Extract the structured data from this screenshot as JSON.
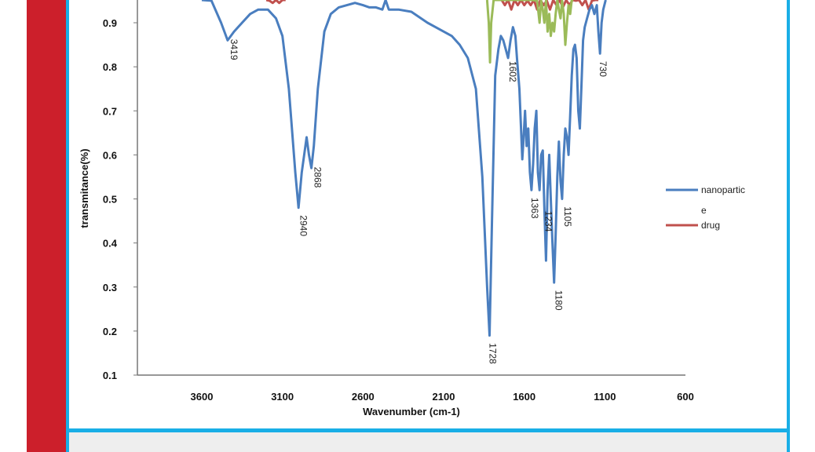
{
  "chart_data": {
    "type": "line",
    "ylabel": "transmitance(%)",
    "xlabel": "Wavenumber (cm-1)",
    "xlim": [
      4000,
      600
    ],
    "ylim": [
      0.1,
      0.96
    ],
    "x_ticks": [
      3600,
      3100,
      2600,
      2100,
      1600,
      1100,
      600
    ],
    "y_ticks": [
      0.1,
      0.2,
      0.3,
      0.4,
      0.5,
      0.6,
      0.7,
      0.8,
      0.9
    ],
    "legend_position": "right",
    "series": [
      {
        "name": "nanopartic e",
        "color": "#4a7ebf",
        "points": [
          [
            3600,
            0.98
          ],
          [
            3540,
            0.95
          ],
          [
            3480,
            0.9
          ],
          [
            3440,
            0.86
          ],
          [
            3400,
            0.88
          ],
          [
            3350,
            0.9
          ],
          [
            3300,
            0.92
          ],
          [
            3250,
            0.93
          ],
          [
            3190,
            0.93
          ],
          [
            3140,
            0.91
          ],
          [
            3100,
            0.87
          ],
          [
            3060,
            0.75
          ],
          [
            3020,
            0.56
          ],
          [
            3000,
            0.48
          ],
          [
            2980,
            0.56
          ],
          [
            2965,
            0.6
          ],
          [
            2950,
            0.64
          ],
          [
            2935,
            0.6
          ],
          [
            2920,
            0.57
          ],
          [
            2905,
            0.62
          ],
          [
            2880,
            0.75
          ],
          [
            2840,
            0.88
          ],
          [
            2800,
            0.92
          ],
          [
            2750,
            0.935
          ],
          [
            2700,
            0.94
          ],
          [
            2650,
            0.945
          ],
          [
            2600,
            0.94
          ],
          [
            2560,
            0.935
          ],
          [
            2520,
            0.935
          ],
          [
            2480,
            0.93
          ],
          [
            2460,
            0.98
          ],
          [
            2440,
            0.93
          ],
          [
            2380,
            0.93
          ],
          [
            2300,
            0.925
          ],
          [
            2200,
            0.9
          ],
          [
            2150,
            0.89
          ],
          [
            2100,
            0.88
          ],
          [
            2050,
            0.87
          ],
          [
            2000,
            0.85
          ],
          [
            1950,
            0.82
          ],
          [
            1900,
            0.75
          ],
          [
            1860,
            0.55
          ],
          [
            1830,
            0.3
          ],
          [
            1815,
            0.19
          ],
          [
            1800,
            0.45
          ],
          [
            1780,
            0.78
          ],
          [
            1760,
            0.84
          ],
          [
            1745,
            0.87
          ],
          [
            1730,
            0.86
          ],
          [
            1715,
            0.84
          ],
          [
            1700,
            0.82
          ],
          [
            1685,
            0.86
          ],
          [
            1670,
            0.89
          ],
          [
            1655,
            0.87
          ],
          [
            1645,
            0.82
          ],
          [
            1630,
            0.75
          ],
          [
            1620,
            0.66
          ],
          [
            1612,
            0.59
          ],
          [
            1605,
            0.63
          ],
          [
            1595,
            0.7
          ],
          [
            1585,
            0.62
          ],
          [
            1575,
            0.66
          ],
          [
            1565,
            0.56
          ],
          [
            1555,
            0.52
          ],
          [
            1545,
            0.58
          ],
          [
            1535,
            0.66
          ],
          [
            1525,
            0.7
          ],
          [
            1515,
            0.56
          ],
          [
            1505,
            0.52
          ],
          [
            1495,
            0.6
          ],
          [
            1485,
            0.61
          ],
          [
            1475,
            0.48
          ],
          [
            1465,
            0.36
          ],
          [
            1455,
            0.52
          ],
          [
            1445,
            0.6
          ],
          [
            1435,
            0.5
          ],
          [
            1425,
            0.4
          ],
          [
            1415,
            0.31
          ],
          [
            1405,
            0.42
          ],
          [
            1395,
            0.55
          ],
          [
            1385,
            0.63
          ],
          [
            1375,
            0.54
          ],
          [
            1365,
            0.5
          ],
          [
            1355,
            0.6
          ],
          [
            1345,
            0.66
          ],
          [
            1335,
            0.64
          ],
          [
            1325,
            0.6
          ],
          [
            1315,
            0.69
          ],
          [
            1305,
            0.78
          ],
          [
            1295,
            0.84
          ],
          [
            1285,
            0.85
          ],
          [
            1275,
            0.82
          ],
          [
            1265,
            0.7
          ],
          [
            1255,
            0.66
          ],
          [
            1245,
            0.76
          ],
          [
            1235,
            0.86
          ],
          [
            1225,
            0.89
          ],
          [
            1210,
            0.91
          ],
          [
            1195,
            0.93
          ],
          [
            1180,
            0.94
          ],
          [
            1165,
            0.92
          ],
          [
            1150,
            0.94
          ],
          [
            1140,
            0.88
          ],
          [
            1130,
            0.83
          ],
          [
            1120,
            0.9
          ],
          [
            1110,
            0.93
          ],
          [
            1095,
            0.98
          ]
        ]
      },
      {
        "name": "drug",
        "color": "#c0504d",
        "points": [
          [
            3200,
            0.96
          ],
          [
            3180,
            0.95
          ],
          [
            3160,
            0.945
          ],
          [
            3140,
            0.955
          ],
          [
            3120,
            0.945
          ],
          [
            3100,
            0.955
          ],
          [
            3080,
            0.96
          ]
        ]
      },
      {
        "name": "drug",
        "color": "#c0504d",
        "points": [
          [
            1740,
            0.98
          ],
          [
            1720,
            0.94
          ],
          [
            1700,
            0.965
          ],
          [
            1680,
            0.93
          ],
          [
            1660,
            0.96
          ],
          [
            1640,
            0.94
          ],
          [
            1620,
            0.965
          ],
          [
            1600,
            0.94
          ],
          [
            1580,
            0.95
          ],
          [
            1560,
            0.94
          ],
          [
            1540,
            0.96
          ],
          [
            1520,
            0.93
          ],
          [
            1500,
            0.965
          ],
          [
            1480,
            0.94
          ],
          [
            1460,
            0.95
          ],
          [
            1440,
            0.93
          ],
          [
            1420,
            0.955
          ],
          [
            1400,
            0.94
          ],
          [
            1380,
            0.96
          ],
          [
            1360,
            0.935
          ],
          [
            1340,
            0.96
          ],
          [
            1320,
            0.94
          ],
          [
            1300,
            0.96
          ],
          [
            1280,
            0.95
          ],
          [
            1260,
            0.97
          ],
          [
            1240,
            0.94
          ],
          [
            1220,
            0.96
          ],
          [
            1200,
            0.93
          ],
          [
            1180,
            0.95
          ],
          [
            1160,
            0.965
          ],
          [
            1140,
            0.97
          ]
        ]
      },
      {
        "name": "",
        "color": "#9bbb59",
        "points": [
          [
            1830,
            0.98
          ],
          [
            1820,
            0.9
          ],
          [
            1812,
            0.81
          ],
          [
            1805,
            0.9
          ],
          [
            1790,
            0.96
          ],
          [
            1750,
            0.97
          ],
          [
            1700,
            0.965
          ],
          [
            1600,
            0.965
          ],
          [
            1550,
            0.96
          ],
          [
            1520,
            0.95
          ],
          [
            1505,
            0.9
          ],
          [
            1495,
            0.95
          ],
          [
            1485,
            0.93
          ],
          [
            1475,
            0.9
          ],
          [
            1465,
            0.95
          ],
          [
            1455,
            0.88
          ],
          [
            1445,
            0.92
          ],
          [
            1435,
            0.87
          ],
          [
            1425,
            0.9
          ],
          [
            1415,
            0.88
          ],
          [
            1405,
            0.92
          ],
          [
            1395,
            0.96
          ],
          [
            1385,
            0.93
          ],
          [
            1375,
            0.91
          ],
          [
            1365,
            0.95
          ],
          [
            1355,
            0.92
          ],
          [
            1345,
            0.85
          ],
          [
            1335,
            0.9
          ],
          [
            1325,
            0.94
          ],
          [
            1315,
            0.92
          ],
          [
            1305,
            0.96
          ],
          [
            1295,
            0.97
          ]
        ]
      }
    ],
    "annotations": [
      {
        "text": "3419",
        "x": 3419,
        "y": 0.87
      },
      {
        "text": "2940",
        "x": 2990,
        "y": 0.47
      },
      {
        "text": "2868",
        "x": 2900,
        "y": 0.58
      },
      {
        "text": "1728",
        "x": 1815,
        "y": 0.18
      },
      {
        "text": "1602",
        "x": 1690,
        "y": 0.82
      },
      {
        "text": "1363",
        "x": 1555,
        "y": 0.51
      },
      {
        "text": "1234",
        "x": 1470,
        "y": 0.48
      },
      {
        "text": "1180",
        "x": 1405,
        "y": 0.3
      },
      {
        "text": "1105",
        "x": 1350,
        "y": 0.49
      },
      {
        "text": "730",
        "x": 1130,
        "y": 0.82
      }
    ],
    "legend": [
      {
        "label": "nanopartic",
        "label_line2": "e",
        "color": "#4a7ebf"
      },
      {
        "label": "drug",
        "color": "#c0504d"
      }
    ]
  },
  "colors": {
    "frame_accent": "#19aee6",
    "side_bar": "#cc1f2b",
    "caption_bg": "#eeeeee"
  }
}
